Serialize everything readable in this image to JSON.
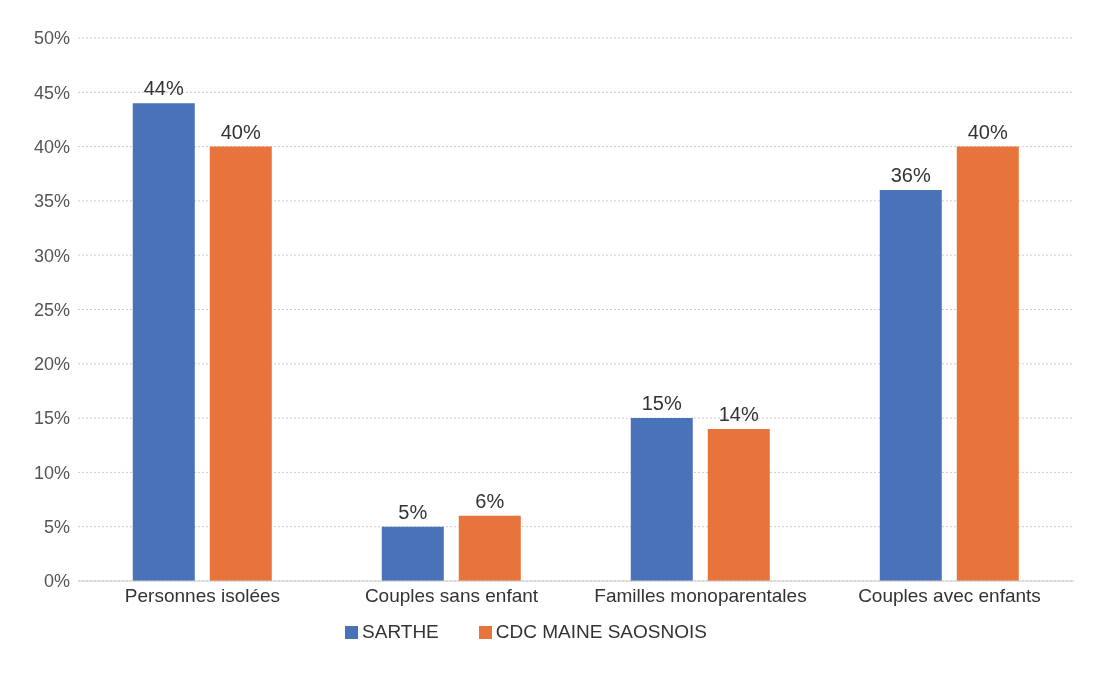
{
  "chart_data": {
    "type": "bar",
    "categories": [
      "Personnes isolées",
      "Couples sans enfant",
      "Familles monoparentales",
      "Couples avec enfants"
    ],
    "series": [
      {
        "name": "SARTHE",
        "color": "#4a72b8",
        "values": [
          44,
          5,
          15,
          36
        ],
        "value_labels": [
          "44%",
          "5%",
          "15%",
          "36%"
        ]
      },
      {
        "name": "CDC MAINE SAOSNOIS",
        "color": "#e8743b",
        "values": [
          40,
          6,
          14,
          40
        ],
        "value_labels": [
          "40%",
          "6%",
          "14%",
          "40%"
        ]
      }
    ],
    "ylim": [
      0,
      50
    ],
    "yticks": [
      {
        "value": 0,
        "label": "0%"
      },
      {
        "value": 5,
        "label": "5%"
      },
      {
        "value": 10,
        "label": "10%"
      },
      {
        "value": 15,
        "label": "15%"
      },
      {
        "value": 20,
        "label": "20%"
      },
      {
        "value": 25,
        "label": "25%"
      },
      {
        "value": 30,
        "label": "30%"
      },
      {
        "value": 35,
        "label": "35%"
      },
      {
        "value": 40,
        "label": "40%"
      },
      {
        "value": 45,
        "label": "45%"
      },
      {
        "value": 50,
        "label": "50%"
      }
    ],
    "grid": "y",
    "legend": "bottom"
  }
}
